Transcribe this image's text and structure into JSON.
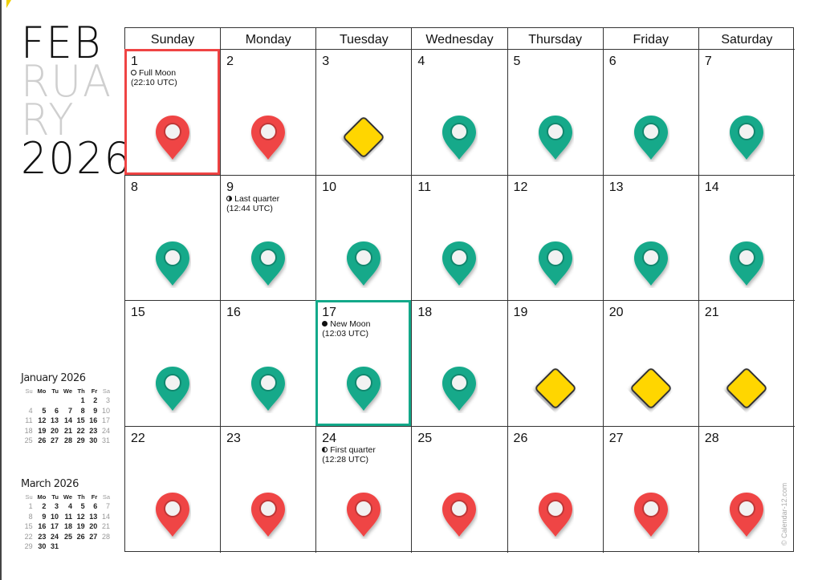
{
  "title": {
    "line1": "FEB",
    "line2": "RUA",
    "line3": "RY",
    "year": "2026"
  },
  "weekdays": [
    "Sunday",
    "Monday",
    "Tuesday",
    "Wednesday",
    "Thursday",
    "Friday",
    "Saturday"
  ],
  "colors": {
    "red": "#ef4444",
    "green": "#13a98a",
    "yellow": "#ffd600",
    "highlight_red": "#ef4444",
    "highlight_green": "#13a98a"
  },
  "days": [
    {
      "d": "1",
      "icon": "red-pin",
      "event": "Full Moon",
      "time": "(22:10 UTC)",
      "moon": "full",
      "highlight": "red"
    },
    {
      "d": "2",
      "icon": "red-pin"
    },
    {
      "d": "3",
      "icon": "yellow-diamond"
    },
    {
      "d": "4",
      "icon": "green-pin"
    },
    {
      "d": "5",
      "icon": "green-pin"
    },
    {
      "d": "6",
      "icon": "green-pin"
    },
    {
      "d": "7",
      "icon": "green-pin"
    },
    {
      "d": "8",
      "icon": "green-pin"
    },
    {
      "d": "9",
      "icon": "green-pin",
      "event": "Last quarter",
      "time": "(12:44 UTC)",
      "moon": "last"
    },
    {
      "d": "10",
      "icon": "green-pin"
    },
    {
      "d": "11",
      "icon": "green-pin"
    },
    {
      "d": "12",
      "icon": "green-pin"
    },
    {
      "d": "13",
      "icon": "green-pin"
    },
    {
      "d": "14",
      "icon": "green-pin"
    },
    {
      "d": "15",
      "icon": "green-pin"
    },
    {
      "d": "16",
      "icon": "green-pin"
    },
    {
      "d": "17",
      "icon": "green-pin",
      "event": "New Moon",
      "time": "(12:03 UTC)",
      "moon": "new",
      "highlight": "green"
    },
    {
      "d": "18",
      "icon": "green-pin"
    },
    {
      "d": "19",
      "icon": "yellow-diamond"
    },
    {
      "d": "20",
      "icon": "yellow-diamond"
    },
    {
      "d": "21",
      "icon": "yellow-diamond"
    },
    {
      "d": "22",
      "icon": "red-pin"
    },
    {
      "d": "23",
      "icon": "red-pin"
    },
    {
      "d": "24",
      "icon": "red-pin",
      "event": "First quarter",
      "time": "(12:28 UTC)",
      "moon": "first"
    },
    {
      "d": "25",
      "icon": "red-pin"
    },
    {
      "d": "26",
      "icon": "red-pin"
    },
    {
      "d": "27",
      "icon": "red-pin"
    },
    {
      "d": "28",
      "icon": "red-pin"
    }
  ],
  "mini": [
    {
      "title": "January 2026",
      "head": [
        "Su",
        "Mo",
        "Tu",
        "We",
        "Th",
        "Fr",
        "Sa"
      ],
      "weeks": [
        [
          "",
          "",
          "",
          "",
          "1",
          "2",
          "3"
        ],
        [
          "4",
          "5",
          "6",
          "7",
          "8",
          "9",
          "10"
        ],
        [
          "11",
          "12",
          "13",
          "14",
          "15",
          "16",
          "17"
        ],
        [
          "18",
          "19",
          "20",
          "21",
          "22",
          "23",
          "24"
        ],
        [
          "25",
          "26",
          "27",
          "28",
          "29",
          "30",
          "31"
        ]
      ]
    },
    {
      "title": "March 2026",
      "head": [
        "Su",
        "Mo",
        "Tu",
        "We",
        "Th",
        "Fr",
        "Sa"
      ],
      "weeks": [
        [
          "1",
          "2",
          "3",
          "4",
          "5",
          "6",
          "7"
        ],
        [
          "8",
          "9",
          "10",
          "11",
          "12",
          "13",
          "14"
        ],
        [
          "15",
          "16",
          "17",
          "18",
          "19",
          "20",
          "21"
        ],
        [
          "22",
          "23",
          "24",
          "25",
          "26",
          "27",
          "28"
        ],
        [
          "29",
          "30",
          "31",
          "",
          "",
          "",
          ""
        ]
      ]
    }
  ],
  "watermark": "© Calendar-12.com"
}
